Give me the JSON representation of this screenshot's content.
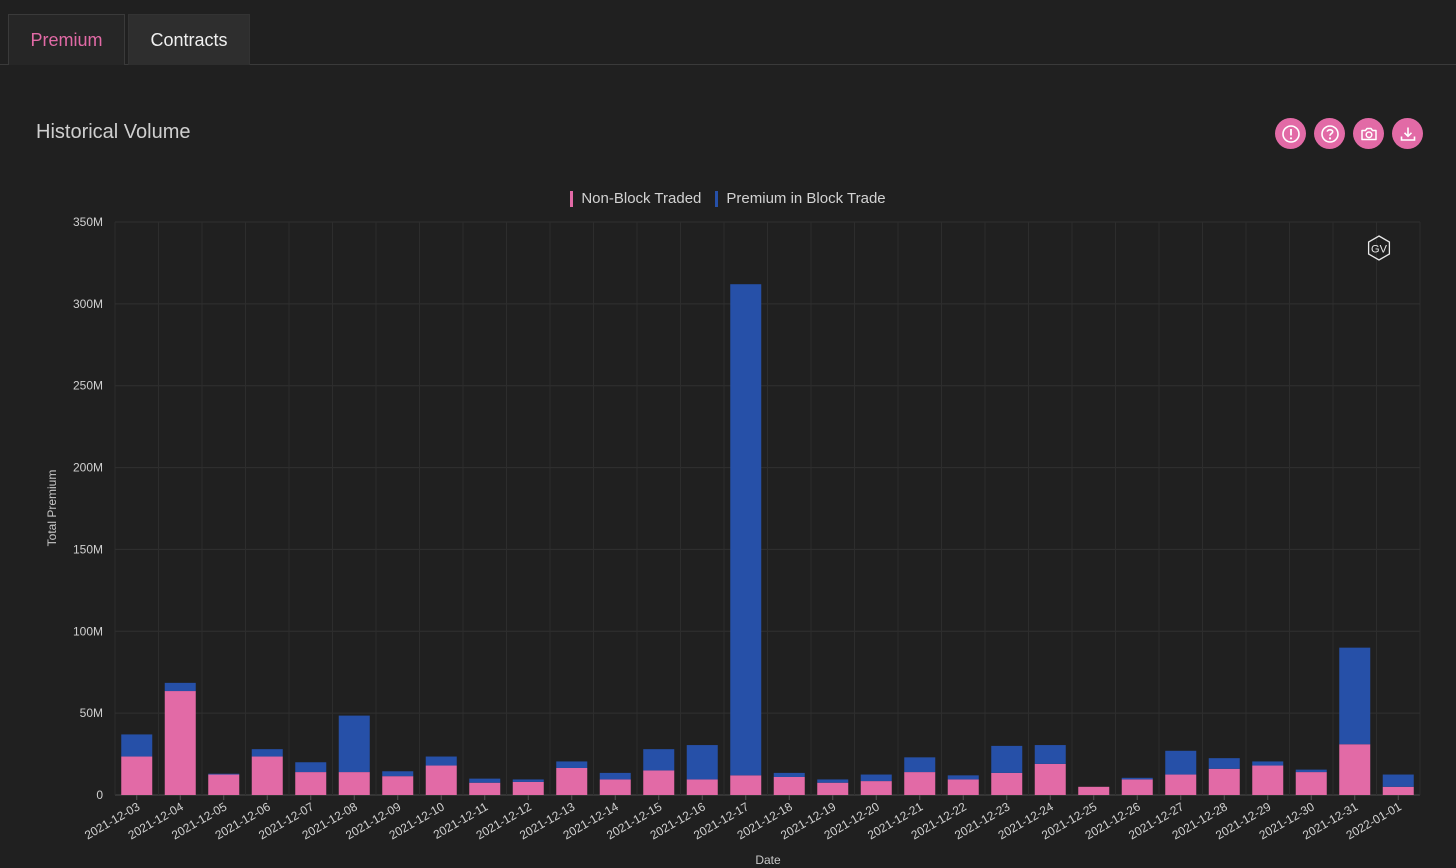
{
  "tabs": [
    {
      "label": "Premium",
      "active": true
    },
    {
      "label": "Contracts",
      "active": false
    }
  ],
  "panel": {
    "title": "Historical Volume",
    "icons": [
      "info-icon",
      "help-icon",
      "camera-icon",
      "download-icon"
    ],
    "watermark": "GV"
  },
  "colors": {
    "non_block": "#e26aa6",
    "block": "#2650a8",
    "accent": "#e26aa6"
  },
  "chart_data": {
    "type": "bar",
    "stacked": true,
    "xlabel": "Date",
    "ylabel": "Total Premium",
    "ylim": [
      0,
      350000000
    ],
    "yticks": [
      {
        "value": 0,
        "label": "0"
      },
      {
        "value": 50000000,
        "label": "50M"
      },
      {
        "value": 100000000,
        "label": "100M"
      },
      {
        "value": 150000000,
        "label": "150M"
      },
      {
        "value": 200000000,
        "label": "200M"
      },
      {
        "value": 250000000,
        "label": "250M"
      },
      {
        "value": 300000000,
        "label": "300M"
      },
      {
        "value": 350000000,
        "label": "350M"
      }
    ],
    "grid": true,
    "legend_position": "top-center",
    "categories": [
      "2021-12-03",
      "2021-12-04",
      "2021-12-05",
      "2021-12-06",
      "2021-12-07",
      "2021-12-08",
      "2021-12-09",
      "2021-12-10",
      "2021-12-11",
      "2021-12-12",
      "2021-12-13",
      "2021-12-14",
      "2021-12-15",
      "2021-12-16",
      "2021-12-17",
      "2021-12-18",
      "2021-12-19",
      "2021-12-20",
      "2021-12-21",
      "2021-12-22",
      "2021-12-23",
      "2021-12-24",
      "2021-12-25",
      "2021-12-26",
      "2021-12-27",
      "2021-12-28",
      "2021-12-29",
      "2021-12-30",
      "2021-12-31",
      "2022-01-01"
    ],
    "series": [
      {
        "name": "Non-Block Traded",
        "values": [
          23500000,
          63500000,
          12500000,
          23500000,
          14000000,
          14000000,
          11500000,
          18000000,
          7500000,
          8000000,
          16500000,
          9500000,
          15000000,
          9500000,
          12000000,
          11000000,
          7500000,
          8500000,
          14000000,
          9500000,
          13500000,
          19000000,
          5000000,
          9500000,
          12500000,
          16000000,
          18000000,
          14000000,
          31000000,
          5000000
        ]
      },
      {
        "name": "Premium in Block Trade",
        "values": [
          13500000,
          5000000,
          500000,
          4500000,
          6000000,
          34500000,
          3000000,
          5500000,
          2500000,
          1500000,
          4000000,
          4000000,
          13000000,
          21000000,
          300000000,
          2500000,
          2000000,
          4000000,
          9000000,
          2500000,
          16500000,
          11500000,
          0,
          1000000,
          14500000,
          6500000,
          2500000,
          1500000,
          59000000,
          7500000
        ]
      }
    ]
  }
}
